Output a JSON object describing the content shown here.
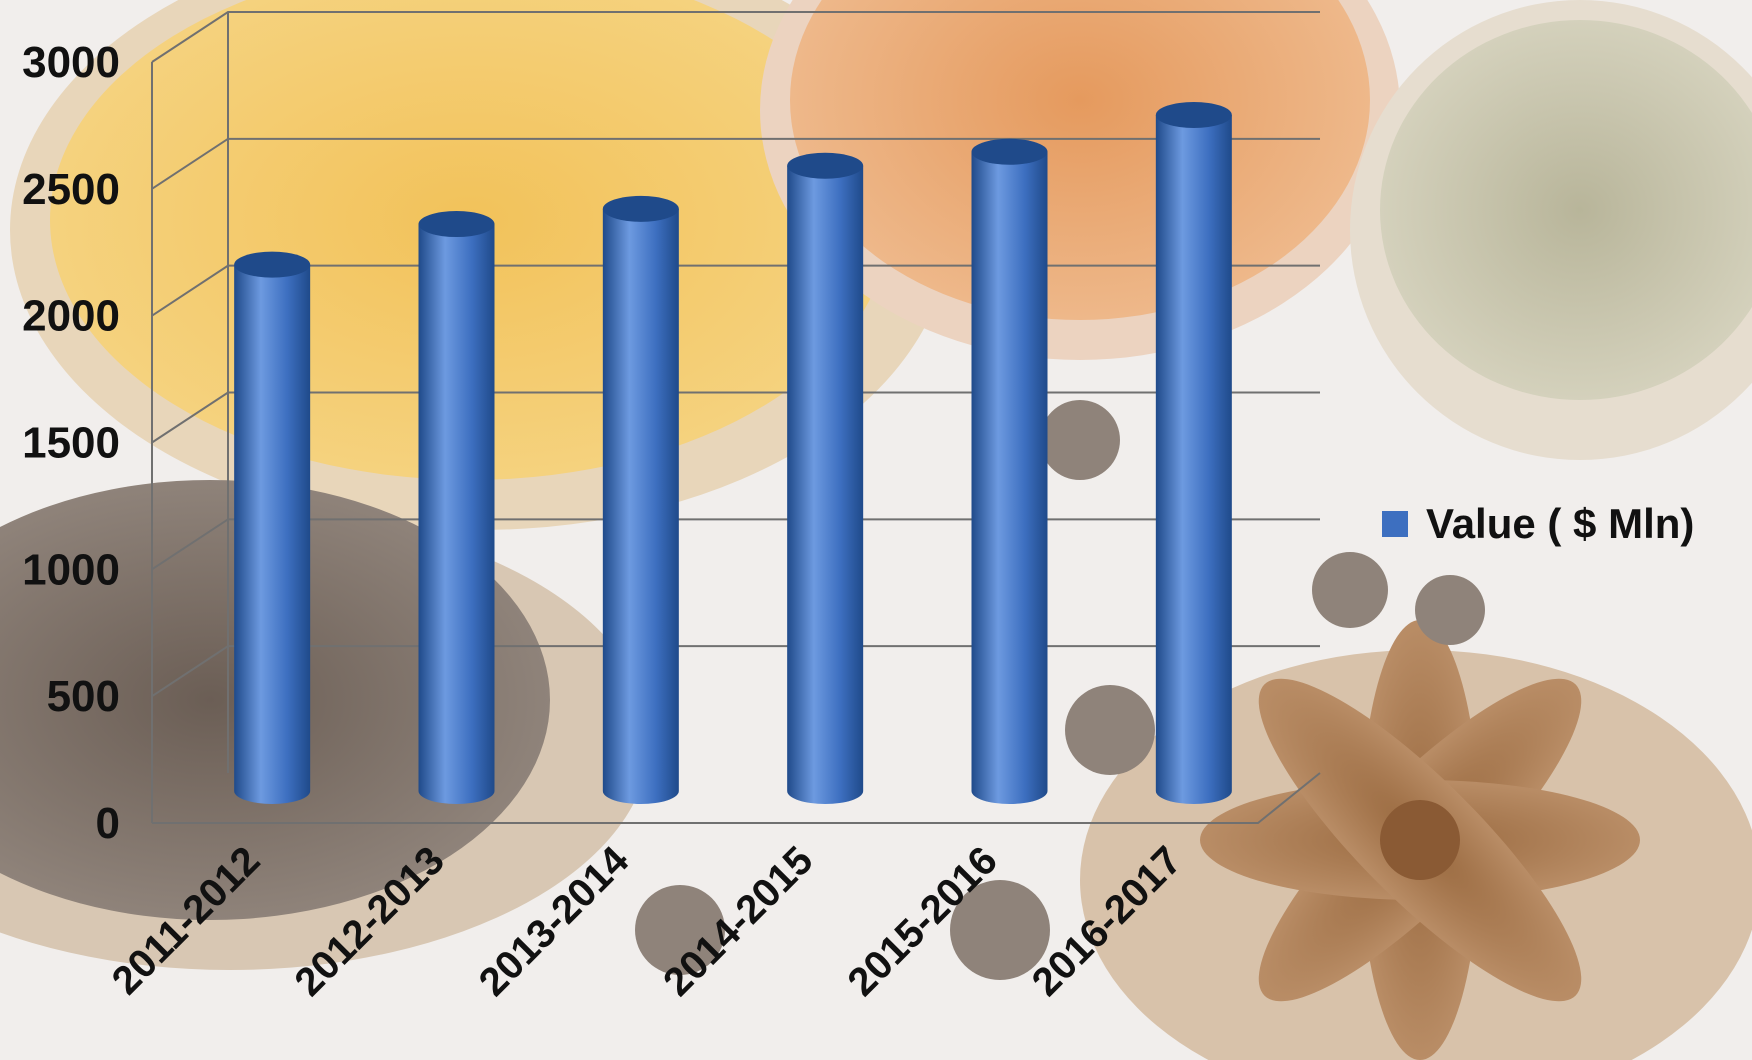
{
  "chart_data": {
    "type": "bar",
    "categories": [
      "2011-2012",
      "2012-2013",
      "2013-2014",
      "2014-2015",
      "2015-2016",
      "2016-2017"
    ],
    "series": [
      {
        "name": "Value ( $ Mln)",
        "values": [
          2075,
          2235,
          2295,
          2465,
          2520,
          2665
        ]
      }
    ],
    "y_ticks": [
      "0",
      "500",
      "1000",
      "1500",
      "2000",
      "2500",
      "3000"
    ],
    "ylim": [
      0,
      3000
    ],
    "grid": true,
    "legend_position": "right",
    "bar_shape": "cylinder",
    "colors": {
      "bar": "#3d6fc0",
      "bar_dark": "#1f4a8a",
      "bar_light": "#6d9ae0",
      "grid": "#707070"
    }
  }
}
